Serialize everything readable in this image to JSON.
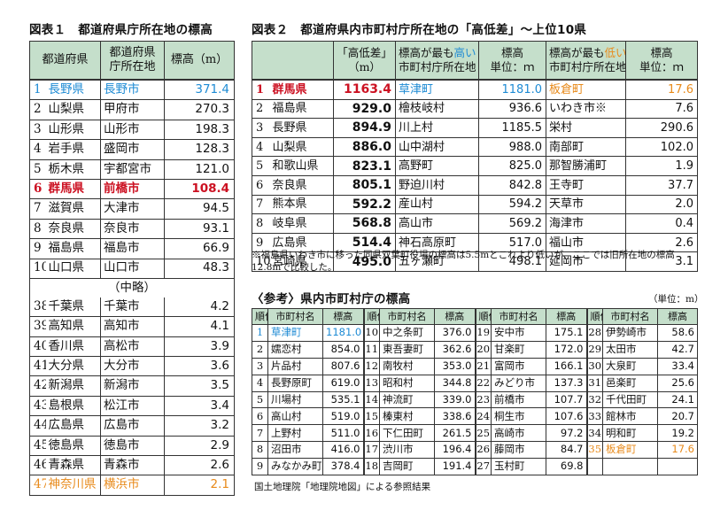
{
  "table1": {
    "title": "図表１　都道府県庁所在地の標高",
    "headers": [
      "都道府県",
      "都道府県\n庁所在地",
      "標高（m）"
    ],
    "top": [
      {
        "rank": "1",
        "pref": "長野県",
        "city": "長野市",
        "elev": "371.4",
        "style": "blue"
      },
      {
        "rank": "2",
        "pref": "山梨県",
        "city": "甲府市",
        "elev": "270.3",
        "style": ""
      },
      {
        "rank": "3",
        "pref": "山形県",
        "city": "山形市",
        "elev": "198.3",
        "style": ""
      },
      {
        "rank": "4",
        "pref": "岩手県",
        "city": "盛岡市",
        "elev": "128.3",
        "style": ""
      },
      {
        "rank": "5",
        "pref": "栃木県",
        "city": "宇都宮市",
        "elev": "121.0",
        "style": ""
      },
      {
        "rank": "6",
        "pref": "群馬県",
        "city": "前橋市",
        "elev": "108.4",
        "style": "red"
      },
      {
        "rank": "7",
        "pref": "滋賀県",
        "city": "大津市",
        "elev": "94.5",
        "style": ""
      },
      {
        "rank": "8",
        "pref": "奈良県",
        "city": "奈良市",
        "elev": "93.1",
        "style": ""
      },
      {
        "rank": "9",
        "pref": "福島県",
        "city": "福島市",
        "elev": "66.9",
        "style": ""
      },
      {
        "rank": "10",
        "pref": "山口県",
        "city": "山口市",
        "elev": "48.3",
        "style": ""
      }
    ],
    "omitted": "（中略）",
    "bottom": [
      {
        "rank": "38",
        "pref": "千葉県",
        "city": "千葉市",
        "elev": "4.2",
        "style": ""
      },
      {
        "rank": "39",
        "pref": "高知県",
        "city": "高知市",
        "elev": "4.1",
        "style": ""
      },
      {
        "rank": "40",
        "pref": "香川県",
        "city": "高松市",
        "elev": "3.9",
        "style": ""
      },
      {
        "rank": "41",
        "pref": "大分県",
        "city": "大分市",
        "elev": "3.6",
        "style": ""
      },
      {
        "rank": "42",
        "pref": "新潟県",
        "city": "新潟市",
        "elev": "3.5",
        "style": ""
      },
      {
        "rank": "43",
        "pref": "島根県",
        "city": "松江市",
        "elev": "3.4",
        "style": ""
      },
      {
        "rank": "44",
        "pref": "広島県",
        "city": "広島市",
        "elev": "3.2",
        "style": ""
      },
      {
        "rank": "45",
        "pref": "徳島県",
        "city": "徳島市",
        "elev": "2.9",
        "style": ""
      },
      {
        "rank": "46",
        "pref": "青森県",
        "city": "青森市",
        "elev": "2.6",
        "style": ""
      },
      {
        "rank": "47",
        "pref": "神奈川県",
        "city": "横浜市",
        "elev": "2.1",
        "style": "orange"
      }
    ]
  },
  "table2": {
    "title": "図表２　都道府県内市町村庁所在地の「高低差」～上位10県",
    "headers": [
      "「高低差」\n（m）",
      "標高が最も高い\n市町村庁所在地",
      "標高\n単位：ｍ",
      "標高が最も低い\n市町村庁所在地",
      "標高\n単位：ｍ"
    ],
    "rows": [
      {
        "rank": "1",
        "pref": "群馬県",
        "diff": "1163.4",
        "high": "草津町",
        "hElev": "1181.0",
        "low": "板倉町",
        "lElev": "17.6",
        "style": "red"
      },
      {
        "rank": "2",
        "pref": "福島県",
        "diff": "929.0",
        "high": "檜枝岐村",
        "hElev": "936.6",
        "low": "いわき市※",
        "lElev": "7.6",
        "style": ""
      },
      {
        "rank": "3",
        "pref": "長野県",
        "diff": "894.9",
        "high": "川上村",
        "hElev": "1185.5",
        "low": "栄村",
        "lElev": "290.6",
        "style": ""
      },
      {
        "rank": "4",
        "pref": "山梨県",
        "diff": "886.0",
        "high": "山中湖村",
        "hElev": "988.0",
        "low": "南部町",
        "lElev": "102.0",
        "style": ""
      },
      {
        "rank": "5",
        "pref": "和歌山県",
        "diff": "823.1",
        "high": "高野町",
        "hElev": "825.0",
        "low": "那智勝浦町",
        "lElev": "1.9",
        "style": ""
      },
      {
        "rank": "6",
        "pref": "奈良県",
        "diff": "805.1",
        "high": "野迫川村",
        "hElev": "842.8",
        "low": "王寺町",
        "lElev": "37.7",
        "style": ""
      },
      {
        "rank": "7",
        "pref": "熊本県",
        "diff": "592.2",
        "high": "産山村",
        "hElev": "594.2",
        "low": "天草市",
        "lElev": "2.0",
        "style": ""
      },
      {
        "rank": "8",
        "pref": "岐阜県",
        "diff": "568.8",
        "high": "高山市",
        "hElev": "569.2",
        "low": "海津市",
        "lElev": "0.4",
        "style": ""
      },
      {
        "rank": "9",
        "pref": "広島県",
        "diff": "514.4",
        "high": "神石高原町",
        "hElev": "517.0",
        "low": "福山市",
        "lElev": "2.6",
        "style": ""
      },
      {
        "rank": "10",
        "pref": "宮崎県",
        "diff": "495.0",
        "high": "五ヶ瀬町",
        "hElev": "498.1",
        "low": "延岡市",
        "lElev": "3.1",
        "style": ""
      }
    ],
    "note": "※福島県いわき市に移った同県双葉町役場の標高は5.5mとこれより低いが、ここでは旧所在地の標高12.8mで比較した。"
  },
  "table3": {
    "title": "〈参考〉県内市町村庁の標高",
    "unit": "（単位：m）",
    "headers": [
      "順位",
      "市町村名",
      "標高",
      "順位",
      "市町村名",
      "標高",
      "順位",
      "市町村名",
      "標高",
      "順位",
      "市町村名",
      "標高"
    ],
    "rows": [
      [
        [
          "1",
          "草津町",
          "1181.0",
          "blue"
        ],
        [
          "10",
          "中之条町",
          "376.0",
          ""
        ],
        [
          "19",
          "安中市",
          "175.1",
          ""
        ],
        [
          "28",
          "伊勢崎市",
          "58.6",
          ""
        ]
      ],
      [
        [
          "2",
          "嬬恋村",
          "854.0",
          ""
        ],
        [
          "11",
          "東吾妻町",
          "362.6",
          ""
        ],
        [
          "20",
          "甘楽町",
          "172.0",
          ""
        ],
        [
          "29",
          "太田市",
          "42.7",
          ""
        ]
      ],
      [
        [
          "3",
          "片品村",
          "807.6",
          ""
        ],
        [
          "12",
          "南牧村",
          "353.0",
          ""
        ],
        [
          "21",
          "富岡市",
          "166.1",
          ""
        ],
        [
          "30",
          "大泉町",
          "33.4",
          ""
        ]
      ],
      [
        [
          "4",
          "長野原町",
          "619.0",
          ""
        ],
        [
          "13",
          "昭和村",
          "344.8",
          ""
        ],
        [
          "22",
          "みどり市",
          "137.3",
          ""
        ],
        [
          "31",
          "邑楽町",
          "25.6",
          ""
        ]
      ],
      [
        [
          "5",
          "川場村",
          "535.1",
          ""
        ],
        [
          "14",
          "神流町",
          "339.0",
          ""
        ],
        [
          "23",
          "前橋市",
          "107.7",
          ""
        ],
        [
          "32",
          "千代田町",
          "24.1",
          ""
        ]
      ],
      [
        [
          "6",
          "高山村",
          "519.0",
          ""
        ],
        [
          "15",
          "榛東村",
          "338.6",
          ""
        ],
        [
          "24",
          "桐生市",
          "107.6",
          ""
        ],
        [
          "33",
          "館林市",
          "20.7",
          ""
        ]
      ],
      [
        [
          "7",
          "上野村",
          "511.0",
          ""
        ],
        [
          "16",
          "下仁田町",
          "261.5",
          ""
        ],
        [
          "25",
          "高崎市",
          "97.2",
          ""
        ],
        [
          "34",
          "明和町",
          "19.2",
          ""
        ]
      ],
      [
        [
          "8",
          "沼田市",
          "416.0",
          ""
        ],
        [
          "17",
          "渋川市",
          "196.4",
          ""
        ],
        [
          "26",
          "藤岡市",
          "84.7",
          ""
        ],
        [
          "35",
          "板倉町",
          "17.6",
          "orange"
        ]
      ],
      [
        [
          "9",
          "みなかみ町",
          "378.4",
          ""
        ],
        [
          "18",
          "吉岡町",
          "191.4",
          ""
        ],
        [
          "27",
          "玉村町",
          "69.8",
          ""
        ],
        [
          "",
          "",
          "",
          ""
        ]
      ]
    ],
    "source": "国土地理院「地理院地図」による参照結果"
  },
  "colors": {
    "header_bg": "#c5dfcb",
    "blue": "#1e8bd4",
    "red": "#cc1122",
    "orange": "#e88a1a"
  }
}
